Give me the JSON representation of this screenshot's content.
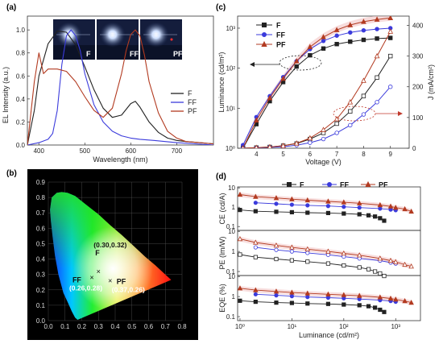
{
  "panels": {
    "a": "(a)",
    "b": "(b)",
    "c": "(c)",
    "d": "(d)"
  },
  "colors": {
    "F": "#222222",
    "FF": "#3b3bdc",
    "PF": "#b23a20",
    "band": "#f2c4c4"
  },
  "chart_data": [
    {
      "id": "a",
      "type": "line",
      "xlabel": "Wavelength (nm)",
      "ylabel": "EL Intensity (a.u.)",
      "xlim": [
        375,
        780
      ],
      "ylim": [
        0,
        1.12
      ],
      "xticks": [
        400,
        500,
        600,
        700
      ],
      "yticks": [
        0.0,
        0.2,
        0.4,
        0.6,
        0.8,
        1.0
      ],
      "legend_position": "right",
      "inset_labels": [
        "F",
        "FF",
        "PF"
      ],
      "series": [
        {
          "name": "F",
          "x": [
            375,
            390,
            400,
            420,
            440,
            460,
            480,
            500,
            520,
            540,
            560,
            580,
            600,
            610,
            620,
            640,
            660,
            680,
            700,
            720,
            750,
            780
          ],
          "y": [
            0.0,
            0.3,
            0.6,
            0.88,
            0.99,
            0.98,
            0.87,
            0.68,
            0.48,
            0.32,
            0.24,
            0.26,
            0.36,
            0.38,
            0.33,
            0.2,
            0.11,
            0.06,
            0.04,
            0.03,
            0.02,
            0.01
          ]
        },
        {
          "name": "FF",
          "x": [
            375,
            400,
            420,
            430,
            440,
            450,
            460,
            470,
            480,
            490,
            500,
            520,
            540,
            560,
            580,
            600,
            620,
            650,
            700,
            780
          ],
          "y": [
            0.0,
            0.02,
            0.05,
            0.1,
            0.3,
            0.7,
            0.95,
            1.0,
            0.95,
            0.82,
            0.62,
            0.35,
            0.2,
            0.12,
            0.08,
            0.06,
            0.05,
            0.04,
            0.02,
            0.0
          ]
        },
        {
          "name": "PF",
          "x": [
            375,
            390,
            400,
            410,
            420,
            440,
            460,
            480,
            500,
            520,
            540,
            560,
            580,
            590,
            600,
            610,
            620,
            630,
            640,
            660,
            680,
            700,
            720,
            750,
            780
          ],
          "y": [
            0.0,
            0.55,
            0.8,
            0.62,
            0.66,
            0.66,
            0.64,
            0.55,
            0.42,
            0.3,
            0.24,
            0.32,
            0.62,
            0.82,
            0.96,
            1.0,
            0.95,
            0.78,
            0.55,
            0.28,
            0.12,
            0.06,
            0.03,
            0.02,
            0.01
          ]
        }
      ]
    },
    {
      "id": "b",
      "type": "scatter",
      "xlim": [
        0.0,
        0.8
      ],
      "ylim": [
        0.0,
        0.9
      ],
      "xticks": [
        "0.0",
        "0.1",
        "0.2",
        "0.3",
        "0.4",
        "0.5",
        "0.6",
        "0.7",
        "0.8"
      ],
      "yticks": [
        "0.0",
        "0.1",
        "0.2",
        "0.3",
        "0.4",
        "0.5",
        "0.6",
        "0.7",
        "0.8",
        "0.9"
      ],
      "points": [
        {
          "name": "F",
          "x": 0.3,
          "y": 0.32,
          "coord": "(0.30,0.32)"
        },
        {
          "name": "FF",
          "x": 0.26,
          "y": 0.28,
          "coord": "(0.26,0.28)"
        },
        {
          "name": "PF",
          "x": 0.37,
          "y": 0.26,
          "coord": "(0.37,0.26)"
        }
      ]
    },
    {
      "id": "c",
      "type": "line",
      "xlabel": "Voltage (V)",
      "ylabel": "Luminance (cd/m²)",
      "ylabel_right": "J (mA/cm²)",
      "xlim": [
        3.3,
        9.7
      ],
      "ylim_log": [
        1,
        2000
      ],
      "ylim_right": [
        0,
        430
      ],
      "xticks": [
        4,
        5,
        6,
        7,
        8,
        9
      ],
      "yticks": [
        "10⁰",
        "10¹",
        "10²",
        "10³"
      ],
      "yticks_right": [
        0,
        100,
        200,
        300,
        400
      ],
      "legend_position": "top-left",
      "x": [
        3.5,
        4.0,
        4.5,
        5.0,
        5.5,
        6.0,
        6.5,
        7.0,
        7.5,
        8.0,
        8.5,
        9.0
      ],
      "luminance": [
        {
          "name": "F",
          "y": [
            1.0,
            4,
            15,
            45,
            110,
            210,
            310,
            400,
            460,
            510,
            550,
            570
          ]
        },
        {
          "name": "FF",
          "y": [
            1.2,
            6,
            20,
            60,
            150,
            300,
            480,
            650,
            780,
            880,
            950,
            1000
          ]
        },
        {
          "name": "PF",
          "y": [
            1.0,
            5,
            18,
            55,
            150,
            340,
            600,
            900,
            1200,
            1450,
            1650,
            1800
          ]
        }
      ],
      "current_density": [
        {
          "name": "F",
          "y": [
            0,
            2,
            4,
            8,
            15,
            30,
            50,
            80,
            120,
            170,
            230,
            300
          ]
        },
        {
          "name": "FF",
          "y": [
            0,
            1,
            3,
            5,
            10,
            18,
            30,
            50,
            75,
            110,
            150,
            200
          ]
        },
        {
          "name": "PF",
          "y": [
            0,
            2,
            4,
            8,
            16,
            33,
            60,
            95,
            150,
            220,
            300,
            380
          ]
        }
      ]
    },
    {
      "id": "d",
      "type": "line",
      "xlabel": "Luminance (cd/m²)",
      "xlim_log": [
        0.9,
        3000
      ],
      "xticks": [
        "10⁰",
        "10¹",
        "10²",
        "10³"
      ],
      "legend_position": "top",
      "subplots": [
        {
          "ylabel": "CE (cd/A)",
          "yticks": [
            "0.1",
            "1",
            "10"
          ],
          "filled": true,
          "series": [
            {
              "name": "F",
              "x": [
                1,
                2,
                5,
                10,
                20,
                50,
                100,
                200,
                300,
                400,
                500,
                600
              ],
              "y": [
                0.72,
                0.62,
                0.58,
                0.55,
                0.52,
                0.5,
                0.47,
                0.43,
                0.38,
                0.33,
                0.27,
                0.2
              ]
            },
            {
              "name": "FF",
              "x": [
                2,
                5,
                10,
                20,
                50,
                100,
                200,
                500,
                800,
                1000
              ],
              "y": [
                1.7,
                1.5,
                1.35,
                1.25,
                1.15,
                1.05,
                0.95,
                0.85,
                0.75,
                0.7
              ]
            },
            {
              "name": "PF",
              "x": [
                1,
                2,
                5,
                10,
                20,
                50,
                100,
                200,
                500,
                800,
                1000,
                1500,
                2000
              ],
              "y": [
                4.5,
                3.5,
                3.0,
                2.6,
                2.3,
                2.0,
                1.8,
                1.6,
                1.3,
                1.1,
                0.95,
                0.8,
                0.6
              ]
            }
          ]
        },
        {
          "ylabel": "PE (lm/W)",
          "yticks": [
            "0.1",
            "1",
            "10"
          ],
          "filled": false,
          "series": [
            {
              "name": "F",
              "x": [
                1,
                2,
                5,
                10,
                20,
                50,
                100,
                200,
                300,
                400,
                500,
                600
              ],
              "y": [
                0.7,
                0.52,
                0.42,
                0.36,
                0.31,
                0.25,
                0.2,
                0.16,
                0.13,
                0.1,
                0.08,
                0.06
              ]
            },
            {
              "name": "FF",
              "x": [
                2,
                5,
                10,
                20,
                50,
                100,
                200,
                500,
                800,
                1000
              ],
              "y": [
                1.6,
                1.2,
                1.0,
                0.85,
                0.68,
                0.55,
                0.45,
                0.35,
                0.28,
                0.25
              ]
            },
            {
              "name": "PF",
              "x": [
                1,
                2,
                5,
                10,
                20,
                50,
                100,
                200,
                500,
                800,
                1000,
                1500,
                2000
              ],
              "y": [
                4.2,
                2.8,
                2.0,
                1.6,
                1.3,
                1.0,
                0.8,
                0.65,
                0.45,
                0.35,
                0.3,
                0.22,
                0.18
              ]
            }
          ]
        },
        {
          "ylabel": "EQE (%)",
          "yticks": [
            "0.1",
            "1",
            "10"
          ],
          "filled": true,
          "series": [
            {
              "name": "F",
              "x": [
                1,
                2,
                5,
                10,
                20,
                50,
                100,
                200,
                300,
                400,
                500,
                600
              ],
              "y": [
                0.62,
                0.55,
                0.5,
                0.48,
                0.45,
                0.43,
                0.4,
                0.37,
                0.33,
                0.28,
                0.22,
                0.17
              ]
            },
            {
              "name": "FF",
              "x": [
                2,
                5,
                10,
                20,
                50,
                100,
                200,
                500,
                800,
                1000
              ],
              "y": [
                1.3,
                1.15,
                1.05,
                0.95,
                0.88,
                0.82,
                0.75,
                0.66,
                0.6,
                0.55
              ]
            },
            {
              "name": "PF",
              "x": [
                1,
                2,
                5,
                10,
                20,
                50,
                100,
                200,
                500,
                800,
                1000,
                1500,
                2000
              ],
              "y": [
                2.6,
                2.1,
                1.8,
                1.6,
                1.45,
                1.3,
                1.2,
                1.1,
                0.92,
                0.8,
                0.72,
                0.6,
                0.5
              ]
            }
          ]
        }
      ]
    }
  ]
}
